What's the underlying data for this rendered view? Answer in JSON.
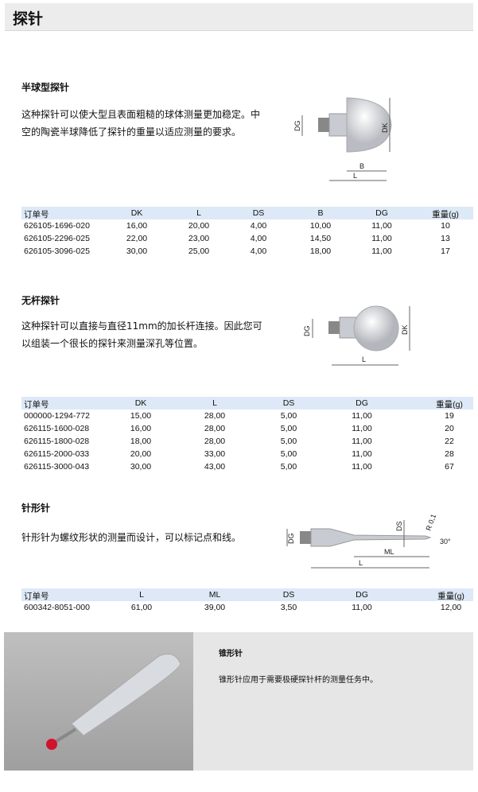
{
  "page_title": "探针",
  "sections": [
    {
      "heading": "半球型探针",
      "text": "这种探针可以使大型且表面粗糙的球体测量更加稳定。中空的陶瓷半球降低了探针的重量以适应测量的要求。",
      "diagram_labels": {
        "dg": "DG",
        "dk": "DK",
        "b": "B",
        "l": "L"
      },
      "table": {
        "headers": [
          "订单号",
          "DK",
          "L",
          "DS",
          "B",
          "DG",
          "重量(g)"
        ],
        "rows": [
          [
            "626105-1696-020",
            "16,00",
            "20,00",
            "4,00",
            "10,00",
            "11,00",
            "10"
          ],
          [
            "626105-2296-025",
            "22,00",
            "23,00",
            "4,00",
            "14,50",
            "11,00",
            "13"
          ],
          [
            "626105-3096-025",
            "30,00",
            "25,00",
            "4,00",
            "18,00",
            "11,00",
            "17"
          ]
        ]
      }
    },
    {
      "heading": "无杆探针",
      "text": "这种探针可以直接与直径11mm的加长杆连接。因此您可以组装一个很长的探针来测量深孔等位置。",
      "diagram_labels": {
        "dg": "DG",
        "dk": "DK",
        "l": "L"
      },
      "table": {
        "headers": [
          "订单号",
          "DK",
          "L",
          "DS",
          "DG",
          "重量(g)"
        ],
        "rows": [
          [
            "000000-1294-772",
            "15,00",
            "28,00",
            "5,00",
            "11,00",
            "19"
          ],
          [
            "626115-1600-028",
            "16,00",
            "28,00",
            "5,00",
            "11,00",
            "20"
          ],
          [
            "626115-1800-028",
            "18,00",
            "28,00",
            "5,00",
            "11,00",
            "22"
          ],
          [
            "626115-2000-033",
            "20,00",
            "33,00",
            "5,00",
            "11,00",
            "28"
          ],
          [
            "626115-3000-043",
            "30,00",
            "43,00",
            "5,00",
            "11,00",
            "67"
          ]
        ]
      }
    },
    {
      "heading": "针形针",
      "text": "针形针为螺纹形状的测量而设计，可以标记点和线。",
      "diagram_labels": {
        "dg": "DG",
        "ds": "DS",
        "r": "R 0,1",
        "angle": "30°",
        "ml": "ML",
        "l": "L"
      },
      "table": {
        "headers": [
          "订单号",
          "L",
          "ML",
          "DS",
          "DG",
          "重量(g)"
        ],
        "rows": [
          [
            "600342-8051-000",
            "61,00",
            "39,00",
            "3,50",
            "11,00",
            "12,00"
          ]
        ]
      }
    }
  ],
  "cone": {
    "heading": "锥形针",
    "text": "锥形针应用于需要极硬探针杆的测量任务中。"
  }
}
